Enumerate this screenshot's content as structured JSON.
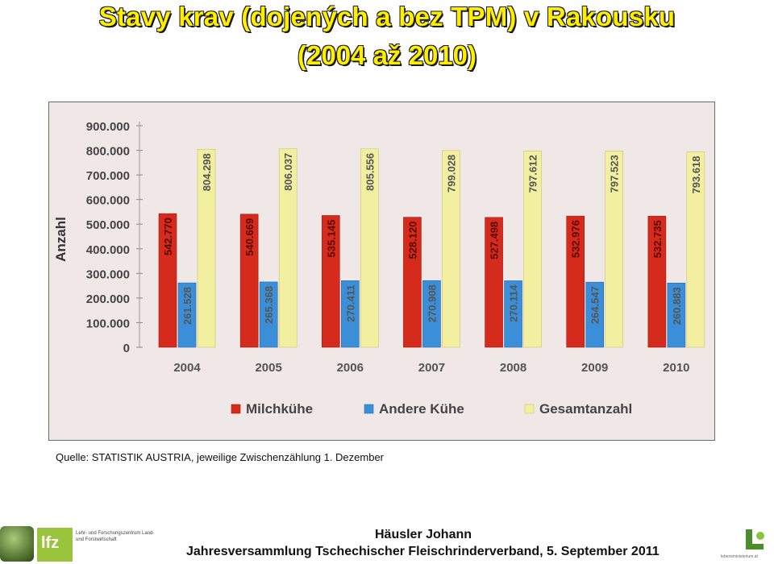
{
  "title_line1": "Stavy krav (dojených a bez TPM) v Rakousku",
  "title_line2": "(2004 až 2010)",
  "source": "Quelle: STATISTIK AUSTRIA, jeweilige Zwischenzählung 1. Dezember",
  "footer": {
    "author": "Häusler Johann",
    "event": "Jahresversammlung Tschechischer Fleischrinderverband, 5. September 2011",
    "logo_left_text": "lfz",
    "logo_left_caption": "Lehr- und Forschungszentrum Land- und Forstwirtschaft",
    "logo_right_caption": "lebensministerium.at"
  },
  "colors": {
    "milchkuehe": "#d42b1c",
    "andere": "#3b8fd8",
    "gesamt": "#f2f0a0",
    "title": "#ffee00"
  },
  "chart_data": {
    "type": "bar",
    "categories": [
      "2004",
      "2005",
      "2006",
      "2007",
      "2008",
      "2009",
      "2010"
    ],
    "series": [
      {
        "name": "Milchkühe",
        "values": [
          542770,
          540669,
          535145,
          528120,
          527498,
          532976,
          532735
        ],
        "labels": [
          "542.770",
          "540.669",
          "535.145",
          "528.120",
          "527.498",
          "532.976",
          "532.735"
        ]
      },
      {
        "name": "Andere Kühe",
        "values": [
          261528,
          265368,
          270411,
          270908,
          270114,
          264547,
          260883
        ],
        "labels": [
          "261.528",
          "265.368",
          "270.411",
          "270.908",
          "270.114",
          "264.547",
          "260.883"
        ]
      },
      {
        "name": "Gesamtanzahl",
        "values": [
          804298,
          806037,
          805556,
          799028,
          797612,
          797523,
          793618
        ],
        "labels": [
          "804.298",
          "806.037",
          "805.556",
          "799.028",
          "797.612",
          "797.523",
          "793.618"
        ]
      }
    ],
    "ylabel": "Anzahl",
    "ylim": [
      0,
      900000
    ],
    "yticks": [
      0,
      100000,
      200000,
      300000,
      400000,
      500000,
      600000,
      700000,
      800000,
      900000
    ],
    "ytick_labels": [
      "0",
      "100.000",
      "200.000",
      "300.000",
      "400.000",
      "500.000",
      "600.000",
      "700.000",
      "800.000",
      "900.000"
    ],
    "legend_position": "bottom",
    "grid": false
  }
}
